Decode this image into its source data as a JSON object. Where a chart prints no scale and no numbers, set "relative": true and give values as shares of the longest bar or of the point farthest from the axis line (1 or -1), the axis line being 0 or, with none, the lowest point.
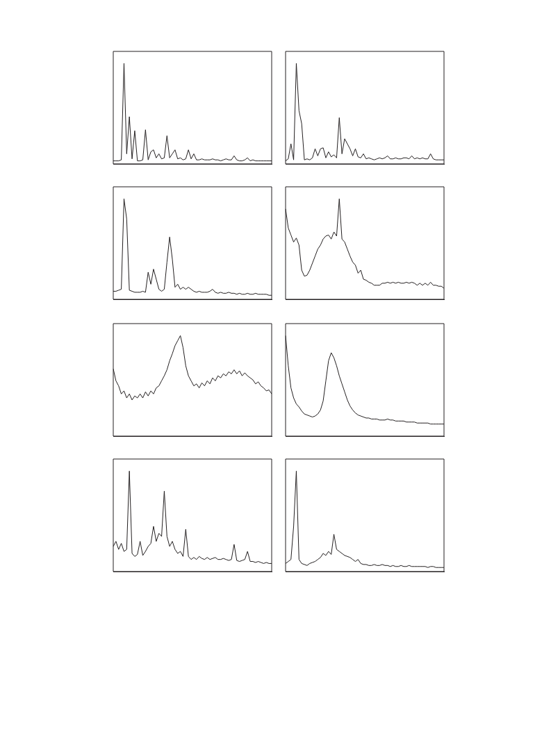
{
  "chart_data": [
    {
      "type": "line",
      "relative": true,
      "legend": false,
      "tick_labels": false,
      "marker": "none",
      "categories": [
        null,
        null,
        null,
        null,
        null,
        null,
        null,
        null,
        null,
        null,
        null,
        null,
        null,
        null,
        null,
        null,
        null,
        null,
        null,
        null,
        null,
        null,
        null,
        null,
        null,
        null,
        null,
        null,
        null,
        null,
        null,
        null,
        null,
        null,
        null,
        null,
        null,
        null,
        null,
        null,
        null,
        null,
        null,
        null,
        null,
        null,
        null,
        null,
        null,
        null,
        null,
        null,
        null,
        null,
        null,
        null,
        null,
        null,
        null,
        null
      ],
      "series": [
        {
          "color": "#231f20",
          "values": [
            0.03,
            0.03,
            0.03,
            0.04,
            1.0,
            0.1,
            0.47,
            0.05,
            0.33,
            0.03,
            0.03,
            0.04,
            0.34,
            0.04,
            0.12,
            0.14,
            0.06,
            0.1,
            0.05,
            0.06,
            0.28,
            0.06,
            0.1,
            0.14,
            0.05,
            0.06,
            0.04,
            0.05,
            0.14,
            0.05,
            0.1,
            0.04,
            0.04,
            0.05,
            0.04,
            0.04,
            0.04,
            0.05,
            0.04,
            0.04,
            0.03,
            0.04,
            0.05,
            0.04,
            0.04,
            0.08,
            0.04,
            0.03,
            0.03,
            0.04,
            0.06,
            0.03,
            0.04,
            0.03,
            0.03,
            0.03,
            0.03,
            0.03,
            0.03,
            0.03
          ]
        }
      ]
    },
    {
      "type": "line",
      "relative": true,
      "legend": false,
      "tick_labels": false,
      "marker": "none",
      "categories": [
        null,
        null,
        null,
        null,
        null,
        null,
        null,
        null,
        null,
        null,
        null,
        null,
        null,
        null,
        null,
        null,
        null,
        null,
        null,
        null,
        null,
        null,
        null,
        null,
        null,
        null,
        null,
        null,
        null,
        null,
        null,
        null,
        null,
        null,
        null,
        null,
        null,
        null,
        null,
        null,
        null,
        null,
        null,
        null,
        null,
        null,
        null,
        null,
        null,
        null,
        null,
        null,
        null,
        null,
        null,
        null,
        null,
        null,
        null,
        null
      ],
      "series": [
        {
          "color": "#231f20",
          "values": [
            0.03,
            0.05,
            0.2,
            0.04,
            1.0,
            0.53,
            0.4,
            0.04,
            0.05,
            0.04,
            0.06,
            0.15,
            0.08,
            0.15,
            0.16,
            0.06,
            0.12,
            0.07,
            0.09,
            0.06,
            0.46,
            0.1,
            0.25,
            0.2,
            0.15,
            0.08,
            0.15,
            0.07,
            0.06,
            0.1,
            0.05,
            0.06,
            0.05,
            0.04,
            0.05,
            0.06,
            0.05,
            0.06,
            0.08,
            0.05,
            0.05,
            0.06,
            0.05,
            0.05,
            0.06,
            0.06,
            0.05,
            0.08,
            0.05,
            0.06,
            0.05,
            0.06,
            0.05,
            0.05,
            0.1,
            0.05,
            0.04,
            0.04,
            0.04,
            0.04
          ]
        }
      ]
    },
    {
      "type": "line",
      "relative": true,
      "legend": false,
      "tick_labels": false,
      "marker": "none",
      "categories": [
        null,
        null,
        null,
        null,
        null,
        null,
        null,
        null,
        null,
        null,
        null,
        null,
        null,
        null,
        null,
        null,
        null,
        null,
        null,
        null,
        null,
        null,
        null,
        null,
        null,
        null,
        null,
        null,
        null,
        null,
        null,
        null,
        null,
        null,
        null,
        null,
        null,
        null,
        null,
        null,
        null,
        null,
        null,
        null,
        null,
        null,
        null,
        null,
        null,
        null,
        null,
        null,
        null,
        null,
        null,
        null,
        null,
        null,
        null,
        null
      ],
      "series": [
        {
          "color": "#231f20",
          "values": [
            0.08,
            0.08,
            0.09,
            0.1,
            1.0,
            0.8,
            0.09,
            0.08,
            0.07,
            0.07,
            0.07,
            0.08,
            0.07,
            0.27,
            0.15,
            0.3,
            0.2,
            0.1,
            0.08,
            0.1,
            0.37,
            0.62,
            0.4,
            0.12,
            0.15,
            0.1,
            0.12,
            0.1,
            0.12,
            0.1,
            0.08,
            0.07,
            0.08,
            0.07,
            0.07,
            0.07,
            0.08,
            0.1,
            0.07,
            0.06,
            0.07,
            0.06,
            0.06,
            0.07,
            0.06,
            0.06,
            0.05,
            0.06,
            0.05,
            0.05,
            0.06,
            0.05,
            0.05,
            0.06,
            0.05,
            0.05,
            0.05,
            0.05,
            0.04,
            0.04
          ]
        }
      ]
    },
    {
      "type": "line",
      "relative": true,
      "legend": false,
      "tick_labels": false,
      "marker": "none",
      "categories": [
        null,
        null,
        null,
        null,
        null,
        null,
        null,
        null,
        null,
        null,
        null,
        null,
        null,
        null,
        null,
        null,
        null,
        null,
        null,
        null,
        null,
        null,
        null,
        null,
        null,
        null,
        null,
        null,
        null,
        null,
        null,
        null,
        null,
        null,
        null,
        null,
        null,
        null,
        null,
        null,
        null,
        null,
        null,
        null,
        null,
        null,
        null,
        null,
        null,
        null,
        null,
        null,
        null,
        null,
        null,
        null,
        null,
        null,
        null,
        null
      ],
      "series": [
        {
          "color": "#231f20",
          "values": [
            0.9,
            0.71,
            0.64,
            0.57,
            0.61,
            0.54,
            0.29,
            0.23,
            0.24,
            0.29,
            0.36,
            0.43,
            0.5,
            0.54,
            0.6,
            0.63,
            0.64,
            0.6,
            0.67,
            0.63,
            1,
            0.6,
            0.57,
            0.5,
            0.43,
            0.37,
            0.34,
            0.26,
            0.29,
            0.2,
            0.19,
            0.17,
            0.16,
            0.14,
            0.14,
            0.14,
            0.16,
            0.16,
            0.17,
            0.16,
            0.17,
            0.16,
            0.17,
            0.16,
            0.16,
            0.17,
            0.16,
            0.17,
            0.16,
            0.14,
            0.16,
            0.14,
            0.16,
            0.14,
            0.17,
            0.14,
            0.14,
            0.13,
            0.13,
            0.11
          ]
        }
      ]
    },
    {
      "type": "line",
      "relative": true,
      "legend": false,
      "tick_labels": false,
      "marker": "none",
      "categories": [
        null,
        null,
        null,
        null,
        null,
        null,
        null,
        null,
        null,
        null,
        null,
        null,
        null,
        null,
        null,
        null,
        null,
        null,
        null,
        null,
        null,
        null,
        null,
        null,
        null,
        null,
        null,
        null,
        null,
        null,
        null,
        null,
        null,
        null,
        null,
        null,
        null,
        null,
        null,
        null,
        null,
        null,
        null,
        null,
        null,
        null,
        null,
        null,
        null,
        null,
        null,
        null,
        null,
        null,
        null,
        null,
        null,
        null,
        null,
        null
      ],
      "series": [
        {
          "color": "#231f20",
          "values": [
            0.67,
            0.55,
            0.5,
            0.42,
            0.45,
            0.38,
            0.42,
            0.36,
            0.4,
            0.38,
            0.42,
            0.38,
            0.44,
            0.4,
            0.45,
            0.42,
            0.48,
            0.5,
            0.55,
            0.6,
            0.66,
            0.75,
            0.82,
            0.9,
            0.95,
            1,
            0.88,
            0.7,
            0.6,
            0.55,
            0.5,
            0.52,
            0.48,
            0.53,
            0.5,
            0.55,
            0.52,
            0.58,
            0.55,
            0.6,
            0.58,
            0.62,
            0.6,
            0.64,
            0.62,
            0.66,
            0.62,
            0.65,
            0.6,
            0.63,
            0.6,
            0.58,
            0.56,
            0.52,
            0.54,
            0.5,
            0.48,
            0.45,
            0.46,
            0.42
          ]
        }
      ]
    },
    {
      "type": "line",
      "relative": true,
      "legend": false,
      "tick_labels": false,
      "marker": "none",
      "categories": [
        null,
        null,
        null,
        null,
        null,
        null,
        null,
        null,
        null,
        null,
        null,
        null,
        null,
        null,
        null,
        null,
        null,
        null,
        null,
        null,
        null,
        null,
        null,
        null,
        null,
        null,
        null,
        null,
        null,
        null,
        null,
        null,
        null,
        null,
        null,
        null,
        null,
        null,
        null,
        null,
        null,
        null,
        null,
        null,
        null,
        null,
        null,
        null,
        null,
        null,
        null,
        null,
        null,
        null,
        null,
        null,
        null,
        null,
        null,
        null
      ],
      "series": [
        {
          "color": "#231f20",
          "values": [
            1,
            0.7,
            0.48,
            0.38,
            0.32,
            0.29,
            0.25,
            0.22,
            0.21,
            0.2,
            0.19,
            0.2,
            0.22,
            0.26,
            0.35,
            0.55,
            0.75,
            0.83,
            0.78,
            0.7,
            0.6,
            0.52,
            0.44,
            0.36,
            0.3,
            0.26,
            0.23,
            0.21,
            0.2,
            0.19,
            0.18,
            0.18,
            0.17,
            0.17,
            0.17,
            0.16,
            0.16,
            0.16,
            0.17,
            0.16,
            0.16,
            0.15,
            0.15,
            0.15,
            0.15,
            0.14,
            0.14,
            0.14,
            0.14,
            0.13,
            0.13,
            0.13,
            0.13,
            0.13,
            0.12,
            0.12,
            0.12,
            0.12,
            0.12,
            0.12
          ]
        }
      ]
    },
    {
      "type": "line",
      "relative": true,
      "legend": false,
      "tick_labels": false,
      "marker": "none",
      "categories": [
        null,
        null,
        null,
        null,
        null,
        null,
        null,
        null,
        null,
        null,
        null,
        null,
        null,
        null,
        null,
        null,
        null,
        null,
        null,
        null,
        null,
        null,
        null,
        null,
        null,
        null,
        null,
        null,
        null,
        null,
        null,
        null,
        null,
        null,
        null,
        null,
        null,
        null,
        null,
        null,
        null,
        null,
        null,
        null,
        null,
        null,
        null,
        null,
        null,
        null,
        null,
        null,
        null,
        null,
        null,
        null,
        null,
        null,
        null,
        null
      ],
      "series": [
        {
          "color": "#231f20",
          "values": [
            0.25,
            0.3,
            0.22,
            0.28,
            0.2,
            0.22,
            1,
            0.18,
            0.15,
            0.17,
            0.3,
            0.16,
            0.2,
            0.25,
            0.28,
            0.45,
            0.3,
            0.38,
            0.35,
            0.8,
            0.35,
            0.25,
            0.3,
            0.22,
            0.18,
            0.2,
            0.15,
            0.42,
            0.15,
            0.12,
            0.14,
            0.12,
            0.15,
            0.13,
            0.12,
            0.14,
            0.12,
            0.13,
            0.14,
            0.12,
            0.12,
            0.13,
            0.12,
            0.11,
            0.12,
            0.27,
            0.11,
            0.1,
            0.11,
            0.12,
            0.2,
            0.1,
            0.1,
            0.09,
            0.1,
            0.09,
            0.08,
            0.09,
            0.08,
            0.08
          ]
        }
      ]
    },
    {
      "type": "line",
      "relative": true,
      "legend": false,
      "tick_labels": false,
      "marker": "none",
      "categories": [
        null,
        null,
        null,
        null,
        null,
        null,
        null,
        null,
        null,
        null,
        null,
        null,
        null,
        null,
        null,
        null,
        null,
        null,
        null,
        null,
        null,
        null,
        null,
        null,
        null,
        null,
        null,
        null,
        null,
        null,
        null,
        null,
        null,
        null,
        null,
        null,
        null,
        null,
        null,
        null,
        null,
        null,
        null,
        null,
        null,
        null,
        null,
        null,
        null,
        null,
        null,
        null,
        null,
        null,
        null,
        null,
        null,
        null,
        null,
        null
      ],
      "series": [
        {
          "color": "#231f20",
          "values": [
            0.08,
            0.1,
            0.12,
            0.45,
            1,
            0.12,
            0.08,
            0.07,
            0.06,
            0.08,
            0.09,
            0.1,
            0.12,
            0.14,
            0.18,
            0.16,
            0.2,
            0.17,
            0.37,
            0.22,
            0.2,
            0.18,
            0.16,
            0.15,
            0.14,
            0.12,
            0.1,
            0.12,
            0.08,
            0.07,
            0.07,
            0.06,
            0.06,
            0.07,
            0.06,
            0.06,
            0.07,
            0.06,
            0.06,
            0.05,
            0.06,
            0.05,
            0.05,
            0.06,
            0.05,
            0.05,
            0.06,
            0.05,
            0.05,
            0.05,
            0.05,
            0.05,
            0.05,
            0.04,
            0.05,
            0.05,
            0.04,
            0.04,
            0.04,
            0.04
          ]
        }
      ]
    }
  ]
}
